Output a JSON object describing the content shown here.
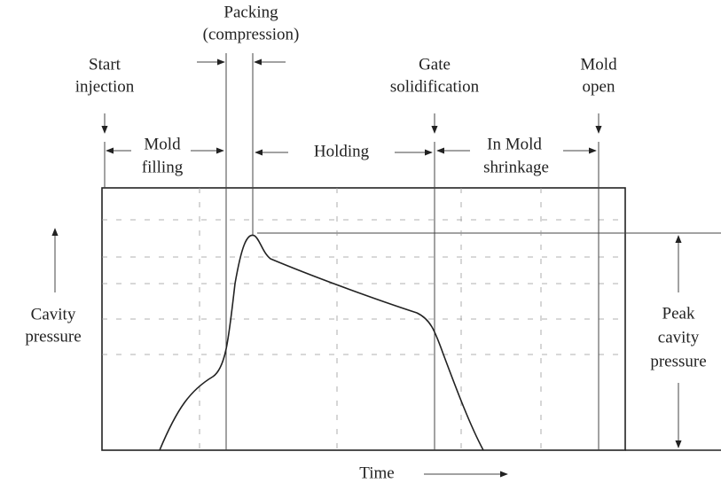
{
  "labels": {
    "start_injection": [
      "Start",
      "injection"
    ],
    "packing": [
      "Packing",
      "(compression)"
    ],
    "gate_solidification": [
      "Gate",
      "solidification"
    ],
    "mold_open": [
      "Mold",
      "open"
    ],
    "mold_filling": [
      "Mold",
      "filling"
    ],
    "holding": [
      "Holding"
    ],
    "in_mold_shrinkage": [
      "In Mold",
      "shrinkage"
    ],
    "cavity_pressure": [
      "Cavity",
      "pressure"
    ],
    "peak_cavity_pressure": [
      "Peak",
      "cavity",
      "pressure"
    ],
    "time": [
      "Time"
    ]
  }
}
